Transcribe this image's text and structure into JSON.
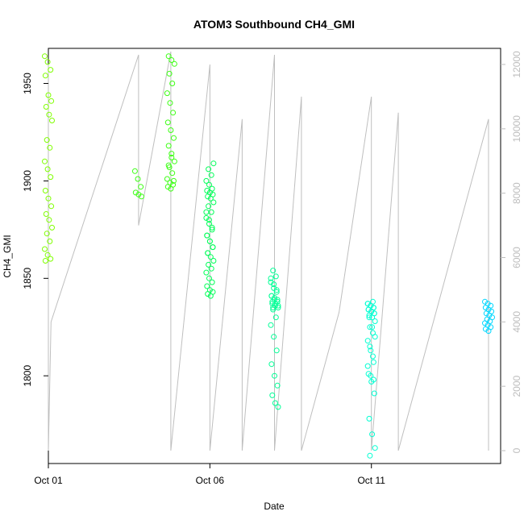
{
  "chart_data": {
    "type": "scatter",
    "title": "ATOM3 Southbound CH4_GMI",
    "xlabel": "Date",
    "ylabel": "CH4_GMI",
    "x_ticks": [
      {
        "value": "2017-10-01",
        "label": "Oct 01"
      },
      {
        "value": "2017-10-06",
        "label": "Oct 06"
      },
      {
        "value": "2017-10-11",
        "label": "Oct 11"
      }
    ],
    "xlim": [
      "2017-10-01",
      "2017-10-15"
    ],
    "ylim": [
      1755,
      1968
    ],
    "y_ticks": [
      1800,
      1850,
      1900,
      1950
    ],
    "y2lim": [
      -400,
      12500
    ],
    "y2_ticks": [
      0,
      2000,
      4000,
      6000,
      8000,
      10000,
      12000
    ],
    "colors": {
      "altitude_line": "#bfbfbf",
      "axis": "#000000",
      "right_axis": "#bdbdbd"
    },
    "series": [
      {
        "color": "#7fff00",
        "x": [
          "2017-10-01T00:00",
          "2017-10-01T00:00",
          "2017-10-01T00:00",
          "2017-10-01T00:00",
          "2017-10-01T00:00",
          "2017-10-01T00:00",
          "2017-10-01T00:00",
          "2017-10-01T00:00",
          "2017-10-01T00:00",
          "2017-10-01T00:00",
          "2017-10-01T00:00",
          "2017-10-01T00:00",
          "2017-10-01T00:00",
          "2017-10-01T00:00",
          "2017-10-01T00:00",
          "2017-10-01T00:00",
          "2017-10-01T00:00",
          "2017-10-01T00:00",
          "2017-10-01T00:00",
          "2017-10-01T00:00",
          "2017-10-01T00:00",
          "2017-10-01T00:00",
          "2017-10-01T00:00",
          "2017-10-01T00:00",
          "2017-10-01T00:00",
          "2017-10-01T00:00"
        ],
        "y": [
          1964,
          1961,
          1957,
          1954,
          1944,
          1941,
          1938,
          1934,
          1931,
          1921,
          1917,
          1910,
          1906,
          1902,
          1895,
          1891,
          1887,
          1883,
          1880,
          1876,
          1873,
          1869,
          1865,
          1862,
          1860,
          1859
        ]
      },
      {
        "color": "#3cff14",
        "x": [
          "2017-10-03T19:00",
          "2017-10-03T19:00",
          "2017-10-03T19:00",
          "2017-10-03T19:00",
          "2017-10-03T19:00",
          "2017-10-03T19:00",
          "2017-10-04T19:00",
          "2017-10-04T19:00",
          "2017-10-04T19:00",
          "2017-10-04T19:00",
          "2017-10-04T19:00",
          "2017-10-04T19:00",
          "2017-10-04T19:00",
          "2017-10-04T19:00",
          "2017-10-04T19:00",
          "2017-10-04T19:00",
          "2017-10-04T19:00",
          "2017-10-04T19:00",
          "2017-10-04T19:00",
          "2017-10-04T19:00",
          "2017-10-04T19:00",
          "2017-10-04T19:00",
          "2017-10-04T19:00",
          "2017-10-04T19:00",
          "2017-10-04T19:00",
          "2017-10-04T19:00",
          "2017-10-04T19:00",
          "2017-10-04T19:00",
          "2017-10-04T19:00",
          "2017-10-04T19:00"
        ],
        "y": [
          1905,
          1901,
          1897,
          1894,
          1893,
          1892,
          1964,
          1962,
          1960,
          1955,
          1950,
          1945,
          1940,
          1935,
          1930,
          1926,
          1922,
          1918,
          1914,
          1910,
          1907,
          1904,
          1901,
          1899,
          1898,
          1897,
          1896,
          1900,
          1908,
          1912
        ]
      },
      {
        "color": "#00ff58",
        "x": [
          "2017-10-06T00:00",
          "2017-10-06T00:00",
          "2017-10-06T00:00",
          "2017-10-06T00:00",
          "2017-10-06T00:00",
          "2017-10-06T00:00",
          "2017-10-06T00:00",
          "2017-10-06T00:00",
          "2017-10-06T00:00",
          "2017-10-06T00:00",
          "2017-10-06T00:00",
          "2017-10-06T00:00",
          "2017-10-06T00:00",
          "2017-10-06T00:00",
          "2017-10-06T00:00",
          "2017-10-06T00:00",
          "2017-10-06T00:00",
          "2017-10-06T00:00",
          "2017-10-06T00:00",
          "2017-10-06T00:00",
          "2017-10-06T00:00",
          "2017-10-06T00:00",
          "2017-10-06T00:00",
          "2017-10-06T00:00",
          "2017-10-06T00:00",
          "2017-10-06T00:00",
          "2017-10-06T00:00",
          "2017-10-06T00:00",
          "2017-10-06T00:00",
          "2017-10-06T00:00",
          "2017-10-06T00:00",
          "2017-10-06T00:00",
          "2017-10-06T00:00",
          "2017-10-06T00:00",
          "2017-10-06T00:00",
          "2017-10-06T00:00",
          "2017-10-06T00:00",
          "2017-10-06T00:00",
          "2017-10-06T00:00",
          "2017-10-06T00:00"
        ],
        "y": [
          1884,
          1880,
          1876,
          1872,
          1869,
          1866,
          1863,
          1861,
          1859,
          1857,
          1855,
          1853,
          1850,
          1848,
          1846,
          1844,
          1843,
          1842,
          1841,
          1909,
          1906,
          1903,
          1900,
          1898,
          1896,
          1895,
          1894,
          1893,
          1892,
          1891,
          1889,
          1887,
          1884,
          1881,
          1878,
          1875,
          1872,
          1869,
          1866,
          1863
        ]
      },
      {
        "color": "#00ff96",
        "x": [
          "2017-10-08T00:00",
          "2017-10-08T00:00",
          "2017-10-08T00:00",
          "2017-10-08T00:00",
          "2017-10-08T00:00",
          "2017-10-08T00:00",
          "2017-10-08T00:00",
          "2017-10-08T00:00",
          "2017-10-08T00:00",
          "2017-10-08T00:00",
          "2017-10-08T00:00",
          "2017-10-08T00:00",
          "2017-10-08T00:00",
          "2017-10-08T00:00",
          "2017-10-08T00:00",
          "2017-10-08T00:00",
          "2017-10-08T00:00",
          "2017-10-08T00:00",
          "2017-10-08T00:00",
          "2017-10-08T00:00",
          "2017-10-08T00:00",
          "2017-10-08T00:00",
          "2017-10-08T00:00",
          "2017-10-08T00:00",
          "2017-10-08T00:00",
          "2017-10-08T00:00",
          "2017-10-08T00:00",
          "2017-10-08T00:00",
          "2017-10-08T00:00",
          "2017-10-08T00:00",
          "2017-10-08T00:00",
          "2017-10-08T00:00"
        ],
        "y": [
          1850,
          1847,
          1844,
          1841,
          1839,
          1838,
          1837,
          1836,
          1835,
          1834,
          1830,
          1826,
          1820,
          1813,
          1806,
          1800,
          1795,
          1790,
          1786,
          1784,
          1854,
          1851,
          1848,
          1845,
          1843,
          1841,
          1840,
          1839,
          1838,
          1837,
          1836,
          1835
        ]
      },
      {
        "color": "#00ffd2",
        "x": [
          "2017-10-11T00:00",
          "2017-10-11T00:00",
          "2017-10-11T00:00",
          "2017-10-11T00:00",
          "2017-10-11T00:00",
          "2017-10-11T00:00",
          "2017-10-11T00:00",
          "2017-10-11T00:00",
          "2017-10-11T00:00",
          "2017-10-11T00:00",
          "2017-10-11T00:00",
          "2017-10-11T00:00",
          "2017-10-11T00:00",
          "2017-10-11T00:00",
          "2017-10-11T00:00",
          "2017-10-11T00:00",
          "2017-10-11T00:00",
          "2017-10-11T00:00",
          "2017-10-11T00:00",
          "2017-10-11T00:00",
          "2017-10-11T00:00",
          "2017-10-11T00:00",
          "2017-10-11T00:00",
          "2017-10-11T00:00",
          "2017-10-11T00:00",
          "2017-10-11T00:00",
          "2017-10-11T00:00",
          "2017-10-11T00:00",
          "2017-10-11T00:00",
          "2017-10-11T00:00",
          "2017-10-11T00:00",
          "2017-10-11T00:00",
          "2017-10-11T00:00",
          "2017-10-11T00:00",
          "2017-10-11T00:00",
          "2017-10-11T00:00"
        ],
        "y": [
          1837,
          1836,
          1835,
          1834,
          1833,
          1832,
          1831,
          1830,
          1828,
          1825,
          1822,
          1818,
          1813,
          1807,
          1801,
          1797,
          1791,
          1778,
          1770,
          1763,
          1759,
          1838,
          1837,
          1836,
          1835,
          1834,
          1833,
          1832,
          1830,
          1825,
          1820,
          1815,
          1810,
          1805,
          1800,
          1798
        ]
      },
      {
        "color": "#00d7ff",
        "x": [
          "2017-10-14T15:00",
          "2017-10-14T15:00",
          "2017-10-14T15:00",
          "2017-10-14T15:00",
          "2017-10-14T15:00",
          "2017-10-14T15:00",
          "2017-10-14T15:00",
          "2017-10-14T15:00",
          "2017-10-14T15:00",
          "2017-10-14T15:00",
          "2017-10-14T15:00",
          "2017-10-14T15:00",
          "2017-10-14T15:00",
          "2017-10-14T15:00",
          "2017-10-14T15:00",
          "2017-10-14T15:00"
        ],
        "y": [
          1838,
          1837,
          1836,
          1835,
          1834,
          1833,
          1832,
          1831,
          1830,
          1829,
          1828,
          1827,
          1826,
          1825,
          1824,
          1823
        ]
      }
    ],
    "altitude_track": {
      "x": [
        "2017-10-01T00:00",
        "2017-10-01T00:00",
        "2017-10-01T02:00",
        "2017-10-03T19:00",
        "2017-10-03T19:00",
        "2017-10-04T19:00",
        "2017-10-04T19:00",
        "2017-10-06T00:00",
        "2017-10-06T00:00",
        "2017-10-07T00:00",
        "2017-10-07T00:00",
        "2017-10-08T00:00",
        "2017-10-08T00:00",
        "2017-10-08T20:00",
        "2017-10-08T20:00",
        "2017-10-10T00:00",
        "2017-10-11T00:00",
        "2017-10-11T00:00",
        "2017-10-11T20:00",
        "2017-10-11T20:00",
        "2017-10-14T15:00",
        "2017-10-14T15:00"
      ],
      "y": [
        12000,
        0,
        4000,
        12300,
        7000,
        12400,
        0,
        12000,
        0,
        10300,
        0,
        12300,
        0,
        11000,
        0,
        4300,
        11000,
        0,
        10500,
        0,
        10300,
        0
      ]
    }
  }
}
